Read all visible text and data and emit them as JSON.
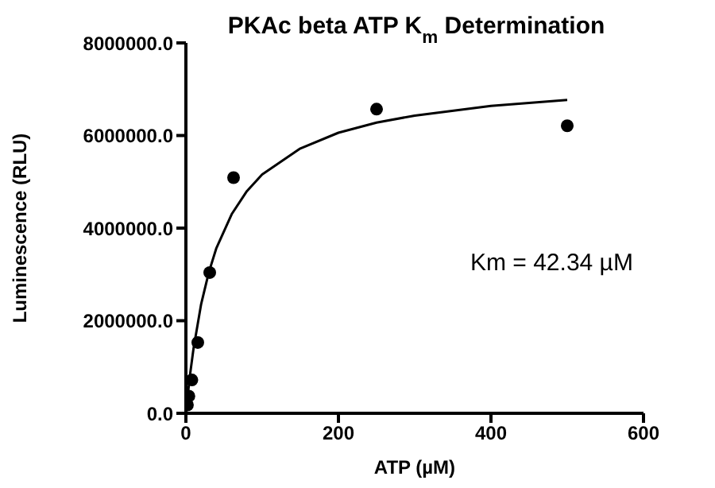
{
  "chart_data": {
    "type": "scatter",
    "title": "PKAc beta ATP K$_{m}$ Determination",
    "xlabel": "ATP (µM)",
    "ylabel": "Luminescence (RLU)",
    "annotations": [
      "Km = 42.34 µM"
    ],
    "series": [
      {
        "color": "#000000",
        "marker": "circle",
        "x": [
          2,
          3.9,
          7.8,
          15.6,
          31.25,
          62.5,
          250,
          500
        ],
        "values": [
          180000,
          370000,
          720000,
          1530000,
          3040000,
          5090000,
          6570000,
          6210000
        ]
      },
      {
        "type": "line",
        "color": "#000000",
        "x": [
          0,
          5,
          10,
          20,
          30,
          40,
          60,
          80,
          100,
          150,
          200,
          250,
          300,
          400,
          500
        ],
        "values": [
          0,
          780000,
          1400000,
          2360000,
          3040000,
          3570000,
          4300000,
          4800000,
          5160000,
          5720000,
          6060000,
          6280000,
          6430000,
          6640000,
          6770000
        ]
      }
    ],
    "xlim": [
      0,
      600
    ],
    "xticks": [
      0,
      200,
      400,
      600
    ],
    "ylim": [
      0,
      8000000
    ],
    "yticks": [
      {
        "value": 0,
        "label": "0.0"
      },
      {
        "value": 2000000,
        "label": "2000000.0"
      },
      {
        "value": 4000000,
        "label": "4000000.0"
      },
      {
        "value": 6000000,
        "label": "6000000.0"
      },
      {
        "value": 8000000,
        "label": "8000000.0"
      }
    ],
    "grid": false,
    "line_style": "solid"
  }
}
